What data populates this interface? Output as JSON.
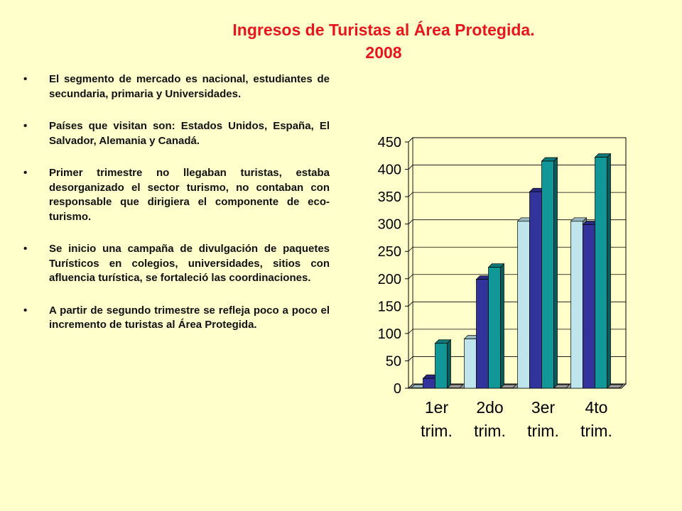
{
  "title": {
    "line1": "Ingresos de Turistas al Área Protegida.",
    "line2": "2008"
  },
  "bullets": [
    "El segmento de mercado es nacional, estudiantes de secundaria, primaria y Universidades.",
    "Países que visitan son: Estados Unidos, España, El Salvador,  Alemania y Canadá.",
    "Primer trimestre no llegaban turistas, estaba desorganizado el sector turismo, no contaban con responsable que dirigiera el componente de eco-turismo.",
    "Se inicio una campaña de divulgación de paquetes Turísticos en colegios, universidades, sitios con afluencia turística, se fortaleció las coordinaciones.",
    "A partir de segundo trimestre se refleja poco a poco el incremento de turistas al Área Protegida."
  ],
  "chart_data": {
    "type": "bar",
    "categories": [
      [
        "1er",
        "trim."
      ],
      [
        "2do",
        "trim."
      ],
      [
        "3er",
        "trim."
      ],
      [
        "4to",
        "trim."
      ]
    ],
    "series": [
      {
        "values": [
          0,
          90,
          305,
          305
        ],
        "color": "#BEE4EC"
      },
      {
        "values": [
          18,
          199,
          359,
          299
        ],
        "color": "#33339C"
      },
      {
        "values": [
          82,
          221,
          415,
          422
        ],
        "color": "#119797"
      },
      {
        "values": [
          0,
          0,
          0,
          0
        ],
        "color": "#BFBFBF"
      }
    ],
    "ylim": [
      0,
      450
    ],
    "yticks": [
      "0",
      "50",
      "100",
      "150",
      "200",
      "250",
      "300",
      "350",
      "400",
      "450"
    ],
    "grid": true,
    "legend": "none",
    "style": "3d-clustered-column"
  }
}
